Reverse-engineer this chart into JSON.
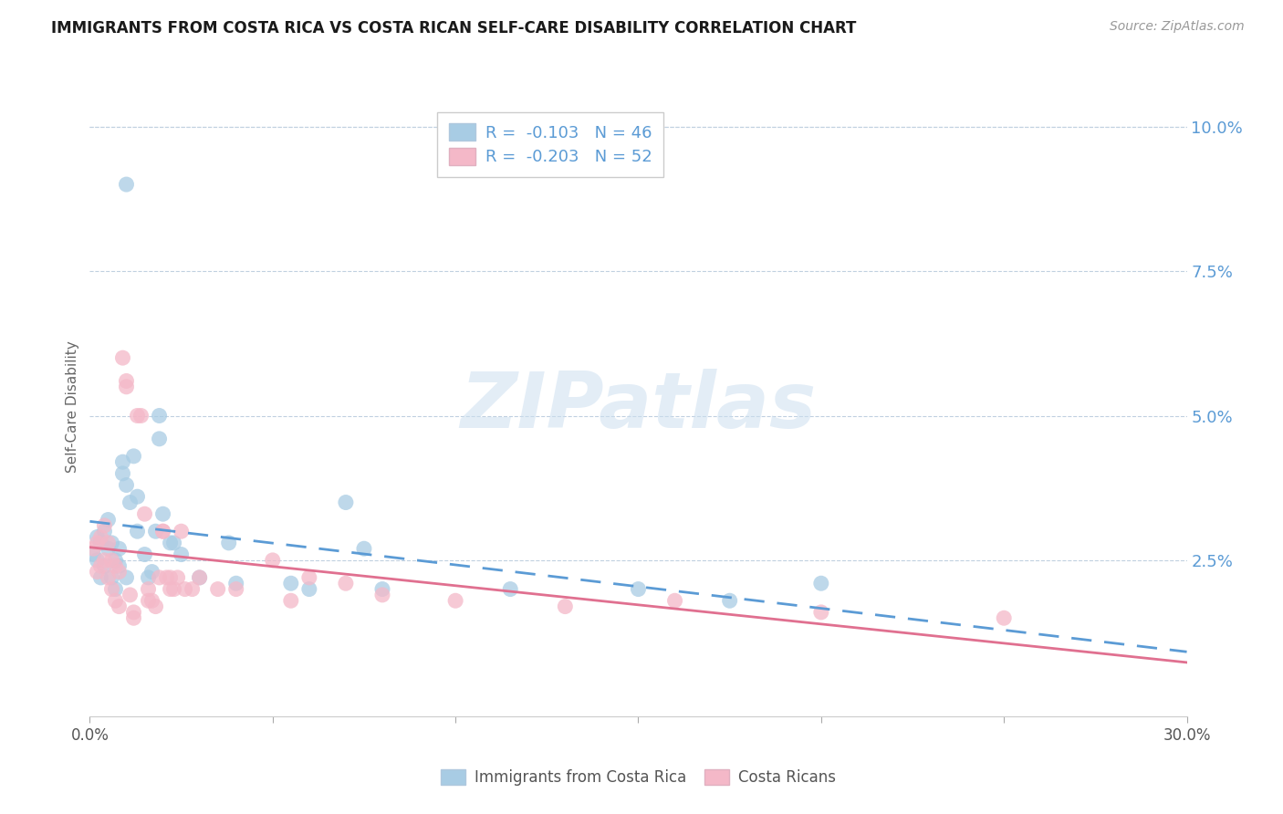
{
  "title": "IMMIGRANTS FROM COSTA RICA VS COSTA RICAN SELF-CARE DISABILITY CORRELATION CHART",
  "source": "Source: ZipAtlas.com",
  "ylabel": "Self-Care Disability",
  "watermark": "ZIPatlas",
  "blue_color": "#a8cce4",
  "pink_color": "#f4b8c8",
  "blue_line_color": "#5b9bd5",
  "pink_line_color": "#e07090",
  "legend_label1": "R =  -0.103   N = 46",
  "legend_label2": "R =  -0.203   N = 52",
  "blue_R": -0.103,
  "blue_N": 46,
  "pink_R": -0.203,
  "pink_N": 52,
  "xlim": [
    0.0,
    0.3
  ],
  "ylim": [
    -0.002,
    0.105
  ],
  "right_ytick_vals": [
    0.025,
    0.05,
    0.075,
    0.1
  ],
  "right_ytick_labels": [
    "2.5%",
    "5.0%",
    "7.5%",
    "10.0%"
  ],
  "xtick_vals": [
    0.0,
    0.05,
    0.1,
    0.15,
    0.2,
    0.25,
    0.3
  ],
  "blue_scatter_x": [
    0.001,
    0.002,
    0.002,
    0.003,
    0.003,
    0.004,
    0.004,
    0.005,
    0.005,
    0.006,
    0.006,
    0.007,
    0.007,
    0.008,
    0.008,
    0.009,
    0.009,
    0.01,
    0.01,
    0.011,
    0.012,
    0.013,
    0.013,
    0.015,
    0.016,
    0.017,
    0.018,
    0.019,
    0.019,
    0.02,
    0.022,
    0.023,
    0.025,
    0.03,
    0.038,
    0.04,
    0.055,
    0.06,
    0.07,
    0.075,
    0.08,
    0.115,
    0.15,
    0.175,
    0.2,
    0.01
  ],
  "blue_scatter_y": [
    0.026,
    0.029,
    0.025,
    0.028,
    0.022,
    0.03,
    0.024,
    0.027,
    0.032,
    0.028,
    0.022,
    0.025,
    0.02,
    0.027,
    0.024,
    0.04,
    0.042,
    0.038,
    0.022,
    0.035,
    0.043,
    0.03,
    0.036,
    0.026,
    0.022,
    0.023,
    0.03,
    0.05,
    0.046,
    0.033,
    0.028,
    0.028,
    0.026,
    0.022,
    0.028,
    0.021,
    0.021,
    0.02,
    0.035,
    0.027,
    0.02,
    0.02,
    0.02,
    0.018,
    0.021,
    0.09
  ],
  "pink_scatter_x": [
    0.001,
    0.002,
    0.002,
    0.003,
    0.003,
    0.004,
    0.004,
    0.005,
    0.005,
    0.006,
    0.006,
    0.007,
    0.007,
    0.008,
    0.008,
    0.009,
    0.01,
    0.01,
    0.011,
    0.012,
    0.012,
    0.013,
    0.014,
    0.015,
    0.016,
    0.016,
    0.017,
    0.018,
    0.019,
    0.02,
    0.02,
    0.021,
    0.022,
    0.022,
    0.023,
    0.024,
    0.025,
    0.026,
    0.028,
    0.03,
    0.035,
    0.04,
    0.05,
    0.055,
    0.06,
    0.07,
    0.08,
    0.1,
    0.13,
    0.16,
    0.2,
    0.25
  ],
  "pink_scatter_y": [
    0.027,
    0.028,
    0.023,
    0.029,
    0.024,
    0.031,
    0.025,
    0.028,
    0.022,
    0.025,
    0.02,
    0.024,
    0.018,
    0.017,
    0.023,
    0.06,
    0.056,
    0.055,
    0.019,
    0.016,
    0.015,
    0.05,
    0.05,
    0.033,
    0.02,
    0.018,
    0.018,
    0.017,
    0.022,
    0.03,
    0.03,
    0.022,
    0.022,
    0.02,
    0.02,
    0.022,
    0.03,
    0.02,
    0.02,
    0.022,
    0.02,
    0.02,
    0.025,
    0.018,
    0.022,
    0.021,
    0.019,
    0.018,
    0.017,
    0.018,
    0.016,
    0.015
  ]
}
